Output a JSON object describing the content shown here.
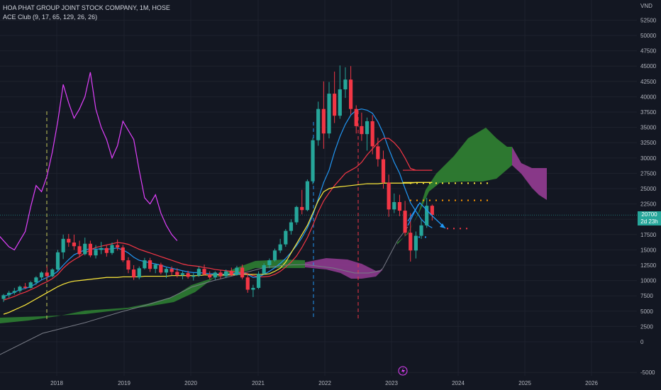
{
  "legend": {
    "title": "HOA PHAT GROUP JOINT STOCK COMPANY, 1M, HOSE",
    "indicator": "ACE Club (9, 17, 65, 129, 26, 26)"
  },
  "price_tag": {
    "price": "20700",
    "countdown": "2d 23h"
  },
  "currency": "VND",
  "colors": {
    "bg": "#131722",
    "up": "#26a69a",
    "down": "#f23645",
    "grid": "#1e222d",
    "cloud_bull": "#2e7d32",
    "cloud_bear": "#8e3a8e",
    "fast": "#2196f3",
    "mid": "#f23645",
    "slow": "#ffeb3b",
    "magenta": "#e040fb",
    "lag": "#787b86"
  },
  "chart_data": {
    "type": "candlestick",
    "y_ticks": [
      -5000,
      0,
      2500,
      5000,
      7500,
      10000,
      12500,
      15000,
      17500,
      20000,
      22500,
      25000,
      27500,
      30000,
      32500,
      35000,
      37500,
      40000,
      42500,
      45000,
      47500,
      50000,
      52500
    ],
    "ylim": [
      -5500,
      55000
    ],
    "x_ticks": [
      "2018",
      "2019",
      "2020",
      "2021",
      "2022",
      "2023",
      "2024",
      "2025",
      "2026"
    ],
    "candles": [
      [
        7000,
        7800,
        6500,
        7600
      ],
      [
        7600,
        8300,
        7200,
        8000
      ],
      [
        8000,
        8800,
        7700,
        8300
      ],
      [
        8300,
        9200,
        8000,
        9000
      ],
      [
        9000,
        9600,
        8600,
        8800
      ],
      [
        8800,
        9900,
        8700,
        9700
      ],
      [
        9700,
        10700,
        9300,
        10500
      ],
      [
        10500,
        11500,
        10100,
        11300
      ],
      [
        11300,
        12300,
        10300,
        10700
      ],
      [
        10700,
        12000,
        10500,
        11800
      ],
      [
        11800,
        15000,
        11600,
        14600
      ],
      [
        14600,
        17500,
        13500,
        16800
      ],
      [
        16800,
        17600,
        15500,
        16200
      ],
      [
        16200,
        17500,
        15000,
        15600
      ],
      [
        15600,
        16500,
        13800,
        14300
      ],
      [
        14300,
        17000,
        14100,
        16000
      ],
      [
        16000,
        16500,
        13800,
        14100
      ],
      [
        14100,
        15800,
        13600,
        15000
      ],
      [
        15000,
        16300,
        14300,
        15300
      ],
      [
        15300,
        15700,
        13900,
        14500
      ],
      [
        14500,
        16200,
        14200,
        15800
      ],
      [
        15800,
        16700,
        14900,
        15400
      ],
      [
        15400,
        15800,
        13000,
        13300
      ],
      [
        13300,
        13800,
        11200,
        11800
      ],
      [
        11800,
        12500,
        10100,
        10500
      ],
      [
        10500,
        12300,
        10200,
        12000
      ],
      [
        12000,
        13700,
        11800,
        13300
      ],
      [
        13300,
        13700,
        11400,
        11900
      ],
      [
        11900,
        12800,
        11200,
        12600
      ],
      [
        12600,
        12900,
        11000,
        11300
      ],
      [
        11300,
        12200,
        10400,
        11900
      ],
      [
        11900,
        12300,
        10900,
        11400
      ],
      [
        11400,
        12000,
        10500,
        10900
      ],
      [
        10900,
        11500,
        10200,
        11200
      ],
      [
        11200,
        11600,
        10300,
        10600
      ],
      [
        10600,
        11200,
        10000,
        10800
      ],
      [
        10800,
        12300,
        10600,
        11900
      ],
      [
        11900,
        12600,
        10800,
        11000
      ],
      [
        11000,
        11500,
        10200,
        10500
      ],
      [
        10500,
        11500,
        10100,
        11300
      ],
      [
        11300,
        11700,
        10300,
        10700
      ],
      [
        10700,
        11800,
        10400,
        11500
      ],
      [
        11500,
        12100,
        10700,
        10900
      ],
      [
        10900,
        12400,
        10800,
        12100
      ],
      [
        12100,
        12600,
        10200,
        10500
      ],
      [
        10500,
        11200,
        8000,
        8500
      ],
      [
        8500,
        9300,
        7300,
        8800
      ],
      [
        8800,
        11500,
        8600,
        11100
      ],
      [
        11100,
        12800,
        10900,
        12500
      ],
      [
        12500,
        13600,
        12000,
        13300
      ],
      [
        13300,
        15200,
        13100,
        14900
      ],
      [
        14900,
        16800,
        14500,
        15900
      ],
      [
        15900,
        18400,
        15500,
        18100
      ],
      [
        18100,
        20000,
        17500,
        19500
      ],
      [
        19500,
        22200,
        19100,
        22000
      ],
      [
        22000,
        24800,
        20800,
        21500
      ],
      [
        21500,
        26500,
        21300,
        26200
      ],
      [
        26200,
        33300,
        25700,
        32900
      ],
      [
        32900,
        39200,
        32000,
        38000
      ],
      [
        38000,
        42500,
        31500,
        34000
      ],
      [
        34000,
        42400,
        33200,
        40500
      ],
      [
        40500,
        44100,
        35700,
        36900
      ],
      [
        36900,
        45100,
        36400,
        41200
      ],
      [
        41200,
        44800,
        39800,
        42800
      ],
      [
        42800,
        45000,
        37100,
        38000
      ],
      [
        38000,
        38600,
        34000,
        35200
      ],
      [
        35200,
        37400,
        32800,
        33900
      ],
      [
        33900,
        36600,
        31200,
        36000
      ],
      [
        36000,
        37000,
        30600,
        31900
      ],
      [
        31900,
        33300,
        28600,
        29800
      ],
      [
        29800,
        31200,
        25000,
        26000
      ],
      [
        26000,
        27300,
        20400,
        21600
      ],
      [
        21600,
        24200,
        21000,
        22800
      ],
      [
        22800,
        24000,
        20500,
        21400
      ],
      [
        21400,
        23000,
        17300,
        17800
      ],
      [
        17800,
        21000,
        13100,
        14900
      ],
      [
        14900,
        18000,
        13600,
        17300
      ],
      [
        17300,
        20000,
        16800,
        19000
      ],
      [
        19000,
        23500,
        18600,
        22200
      ],
      [
        22200,
        22400,
        19800,
        20700
      ]
    ],
    "series": [
      {
        "name": "ACE fast",
        "values": [
          7400,
          7700,
          8100,
          8500,
          8700,
          9000,
          9500,
          10100,
          10500,
          10900,
          11500,
          12500,
          13400,
          14200,
          14600,
          15000,
          15200,
          15100,
          15200,
          15100,
          15200,
          15300,
          15000,
          14500,
          13800,
          13300,
          13100,
          12900,
          12700,
          12500,
          12200,
          12000,
          11800,
          11600,
          11400,
          11300,
          11300,
          11200,
          11100,
          11100,
          11000,
          11000,
          11100,
          11200,
          11200,
          11000,
          10500,
          10600,
          11000,
          11500,
          12100,
          12800,
          13600,
          14600,
          15700,
          17000,
          18600,
          20600,
          23300,
          26000,
          28000,
          31000,
          33500,
          35500,
          37000,
          37800,
          38000,
          37800,
          37300,
          35900,
          34000,
          31500,
          29300,
          27500,
          25000,
          22700,
          21300,
          20000,
          19100,
          18600
        ]
      },
      {
        "name": "ACE mid",
        "values": [
          6800,
          7100,
          7400,
          7800,
          8100,
          8500,
          8900,
          9400,
          9800,
          10300,
          11000,
          12000,
          12800,
          13400,
          13900,
          14500,
          15000,
          15400,
          15600,
          15800,
          16000,
          16200,
          16100,
          15900,
          15500,
          15100,
          14800,
          14500,
          14200,
          13900,
          13600,
          13300,
          13000,
          12700,
          12500,
          12400,
          12300,
          12100,
          12000,
          11800,
          11700,
          11600,
          11500,
          11400,
          11300,
          11100,
          10800,
          10600,
          10600,
          10700,
          11000,
          11500,
          12200,
          13000,
          14000,
          15400,
          17000,
          19000,
          21200,
          23000,
          24300,
          25500,
          26500,
          27500,
          28000,
          28500,
          29300,
          30500,
          31500,
          32500,
          33200,
          33200,
          32500,
          31500,
          30000,
          28300,
          28000,
          28000,
          28000,
          28000
        ]
      },
      {
        "name": "ACE slow",
        "values": [
          4500,
          4800,
          5200,
          5600,
          6000,
          6500,
          7000,
          7500,
          8000,
          8500,
          9000,
          9400,
          9700,
          9900,
          10000,
          10100,
          10200,
          10300,
          10400,
          10500,
          10500,
          10500,
          10600,
          10600,
          10600,
          10600,
          10700,
          10700,
          10700,
          10700,
          10700,
          10800,
          10800,
          10800,
          10800,
          10800,
          10800,
          10900,
          10900,
          10900,
          10900,
          10900,
          10900,
          11000,
          11000,
          11000,
          11000,
          11000,
          11000,
          11100,
          11500,
          12000,
          13000,
          14500,
          16000,
          17500,
          19000,
          21000,
          23000,
          24500,
          25000,
          25200,
          25300,
          25400,
          25500,
          25600,
          25700,
          25800,
          25800,
          25800,
          25900,
          25900,
          25900,
          25900,
          25900,
          25900,
          26000,
          26000,
          26000,
          26000
        ]
      },
      {
        "name": "ACE magenta",
        "values": [
          12000,
          11500,
          11000,
          10800,
          10700,
          10600,
          11500,
          12500,
          13500,
          14500,
          16000,
          17500,
          16500,
          15500,
          15000,
          16500,
          18000,
          22000,
          25500,
          24500,
          27000,
          31000,
          36000,
          42000,
          39000,
          36500,
          38000,
          40000,
          44000,
          38000,
          35000,
          33000,
          30000,
          32000,
          36000,
          34500,
          33000,
          28000,
          23500,
          22500,
          24000,
          21000,
          19000,
          17500,
          16500
        ]
      }
    ]
  }
}
